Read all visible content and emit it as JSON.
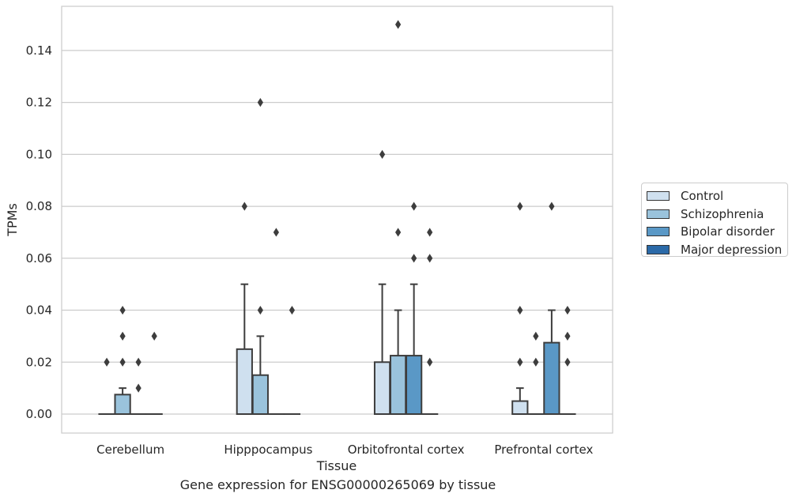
{
  "caption": "Gene expression for ENSG00000265069 by tissue",
  "legend": [
    {
      "label": "Control",
      "color": "#cfe0ef"
    },
    {
      "label": "Schizophrenia",
      "color": "#9ac3dc"
    },
    {
      "label": "Bipolar disorder",
      "color": "#5a98c6"
    },
    {
      "label": "Major depression",
      "color": "#2b6aa8"
    }
  ],
  "chart_data": {
    "type": "box",
    "xlabel": "Tissue",
    "ylabel": "TPMs",
    "ylim": [
      -0.0073,
      0.157
    ],
    "yticks": [
      0.0,
      0.02,
      0.04,
      0.06,
      0.08,
      0.1,
      0.12,
      0.14
    ],
    "ytick_labels": [
      "0.00",
      "0.02",
      "0.04",
      "0.06",
      "0.08",
      "0.10",
      "0.12",
      "0.14"
    ],
    "grid": "horizontal",
    "legend_position": "right",
    "categories": [
      "Cerebellum",
      "Hipppocampus",
      "Orbitofrontal cortex",
      "Prefrontal cortex"
    ],
    "series": [
      {
        "name": "Control",
        "color": "#cfe0ef",
        "boxes": [
          {
            "q1": 0,
            "median": 0,
            "q3": 0,
            "whislo": 0,
            "whishi": 0,
            "fliers": [
              0.02
            ]
          },
          {
            "q1": 0,
            "median": 0,
            "q3": 0.025,
            "whislo": 0,
            "whishi": 0.05,
            "fliers": [
              0.08
            ]
          },
          {
            "q1": 0,
            "median": 0,
            "q3": 0.02,
            "whislo": 0,
            "whishi": 0.05,
            "fliers": [
              0.1
            ]
          },
          {
            "q1": 0,
            "median": 0,
            "q3": 0.005,
            "whislo": 0,
            "whishi": 0.01,
            "fliers": [
              0.02,
              0.04,
              0.08
            ]
          }
        ]
      },
      {
        "name": "Schizophrenia",
        "color": "#9ac3dc",
        "boxes": [
          {
            "q1": 0,
            "median": 0,
            "q3": 0.0075,
            "whislo": 0,
            "whishi": 0.01,
            "fliers": [
              0.02,
              0.03,
              0.04
            ]
          },
          {
            "q1": 0,
            "median": 0,
            "q3": 0.015,
            "whislo": 0,
            "whishi": 0.03,
            "fliers": [
              0.04,
              0.12
            ]
          },
          {
            "q1": 0,
            "median": 0,
            "q3": 0.0225,
            "whislo": 0,
            "whishi": 0.04,
            "fliers": [
              0.07,
              0.15
            ]
          },
          {
            "q1": 0,
            "median": 0,
            "q3": 0,
            "whislo": 0,
            "whishi": 0,
            "fliers": [
              0.02,
              0.03
            ]
          }
        ]
      },
      {
        "name": "Bipolar disorder",
        "color": "#5a98c6",
        "boxes": [
          {
            "q1": 0,
            "median": 0,
            "q3": 0,
            "whislo": 0,
            "whishi": 0,
            "fliers": [
              0.01,
              0.02
            ]
          },
          {
            "q1": 0,
            "median": 0,
            "q3": 0,
            "whislo": 0,
            "whishi": 0,
            "fliers": [
              0.07
            ]
          },
          {
            "q1": 0,
            "median": 0,
            "q3": 0.0225,
            "whislo": 0,
            "whishi": 0.05,
            "fliers": [
              0.06,
              0.08
            ]
          },
          {
            "q1": 0,
            "median": 0,
            "q3": 0.0275,
            "whislo": 0,
            "whishi": 0.04,
            "fliers": [
              0.08
            ]
          }
        ]
      },
      {
        "name": "Major depression",
        "color": "#2b6aa8",
        "boxes": [
          {
            "q1": 0,
            "median": 0,
            "q3": 0,
            "whislo": 0,
            "whishi": 0,
            "fliers": [
              0.03
            ]
          },
          {
            "q1": 0,
            "median": 0,
            "q3": 0,
            "whislo": 0,
            "whishi": 0,
            "fliers": [
              0.04
            ]
          },
          {
            "q1": 0,
            "median": 0,
            "q3": 0,
            "whislo": 0,
            "whishi": 0,
            "fliers": [
              0.02,
              0.06,
              0.07
            ]
          },
          {
            "q1": 0,
            "median": 0,
            "q3": 0,
            "whislo": 0,
            "whishi": 0,
            "fliers": [
              0.02,
              0.03,
              0.04
            ]
          }
        ]
      }
    ]
  }
}
